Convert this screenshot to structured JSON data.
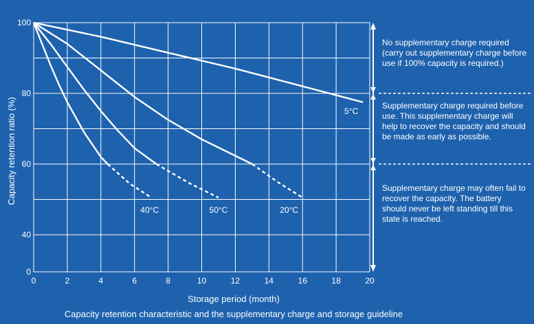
{
  "chart_data": {
    "type": "line",
    "caption": "Capacity retention characteristic and the supplementary charge and storage guideline",
    "xlabel": "Storage period (month)",
    "ylabel": "Capacity retention ratio (%)",
    "x_ticks": [
      0,
      2,
      4,
      6,
      8,
      10,
      12,
      14,
      16,
      18,
      20
    ],
    "y_ticks": [
      0,
      40,
      60,
      80,
      100
    ],
    "xlim": [
      0,
      20
    ],
    "y_axis_note": "broken axis: gap between 0 and 40",
    "grid": true,
    "series": [
      {
        "name": "5°C",
        "solid": [
          [
            0,
            100
          ],
          [
            4,
            96
          ],
          [
            8,
            91.5
          ],
          [
            12,
            87
          ],
          [
            16,
            82
          ],
          [
            19.6,
            77.5
          ]
        ],
        "dashed": []
      },
      {
        "name": "20°C",
        "solid": [
          [
            0,
            100
          ],
          [
            2,
            94
          ],
          [
            4,
            86.5
          ],
          [
            6,
            79
          ],
          [
            8,
            72.5
          ],
          [
            10,
            67
          ],
          [
            13,
            60
          ]
        ],
        "dashed": [
          [
            13,
            60
          ],
          [
            14.5,
            55
          ],
          [
            16,
            50.5
          ]
        ]
      },
      {
        "name": "50°C",
        "solid": [
          [
            0,
            100
          ],
          [
            1,
            94
          ],
          [
            2,
            87.5
          ],
          [
            3,
            81
          ],
          [
            4,
            75
          ],
          [
            5,
            69.5
          ],
          [
            6,
            64.5
          ],
          [
            7.3,
            60
          ]
        ],
        "dashed": [
          [
            7.3,
            60
          ],
          [
            9.3,
            54.5
          ],
          [
            11,
            50.5
          ]
        ]
      },
      {
        "name": "40°C",
        "solid": [
          [
            0,
            100
          ],
          [
            0.5,
            94
          ],
          [
            1,
            88
          ],
          [
            1.5,
            82.5
          ],
          [
            2,
            77.5
          ],
          [
            3,
            69
          ],
          [
            4,
            62
          ],
          [
            4.4,
            60
          ]
        ],
        "dashed": [
          [
            4.4,
            60
          ],
          [
            5.7,
            54.5
          ],
          [
            7,
            50.5
          ]
        ]
      }
    ],
    "series_label_pos": [
      {
        "name": "5°C",
        "x": 18.9,
        "y": 75
      },
      {
        "name": "20°C",
        "x": 15.2,
        "y": 47
      },
      {
        "name": "50°C",
        "x": 11.0,
        "y": 47
      },
      {
        "name": "40°C",
        "x": 6.9,
        "y": 47
      }
    ],
    "zone_boundaries": [
      80,
      60
    ],
    "guidelines": [
      {
        "text": "No supplementary charge required (carry out supplementary charge before use if 100% capacity is required.)"
      },
      {
        "text": "Supplementary charge required before use. This supplementary charge will help to recover the capacity and should be made as early as possible."
      },
      {
        "text": "Supplementary charge may often fail to recover the capacity. The battery should never be left standing till this state is reached."
      }
    ],
    "colors": {
      "background": "#1e62ae",
      "foreground": "#ffffff"
    }
  }
}
